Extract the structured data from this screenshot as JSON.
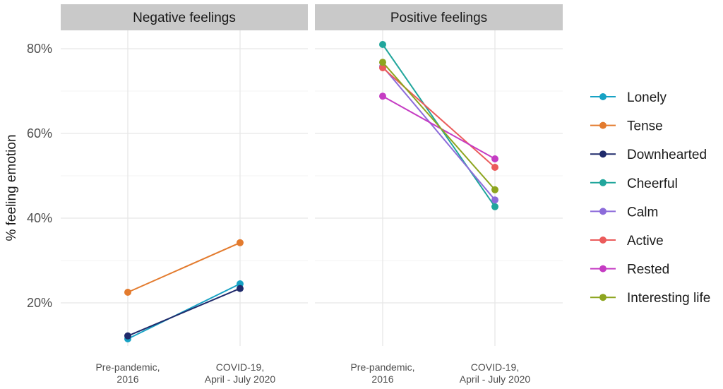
{
  "chart_data": {
    "type": "line",
    "ylabel": "% feeling emotion",
    "y_ticks": [
      "20%",
      "40%",
      "60%",
      "80%"
    ],
    "y_tick_values": [
      20,
      40,
      60,
      80
    ],
    "ylim": [
      10,
      83
    ],
    "grid": true,
    "legend_position": "right",
    "categories": [
      "Pre-pandemic,\n2016",
      "COVID-19,\nApril - July 2020"
    ],
    "panels": [
      {
        "title": "Negative feelings",
        "series": [
          {
            "name": "Lonely",
            "color": "#17A2C4",
            "values": [
              11.5,
              24.5
            ]
          },
          {
            "name": "Tense",
            "color": "#E37B2E",
            "values": [
              22.5,
              34.2
            ]
          },
          {
            "name": "Downhearted",
            "color": "#1F2A6B",
            "values": [
              12.2,
              23.4
            ]
          }
        ]
      },
      {
        "title": "Positive feelings",
        "series": [
          {
            "name": "Cheerful",
            "color": "#21A69C",
            "values": [
              81.0,
              42.7
            ]
          },
          {
            "name": "Calm",
            "color": "#8C6BDA",
            "values": [
              75.8,
              44.3
            ]
          },
          {
            "name": "Active",
            "color": "#EB5B5B",
            "values": [
              75.5,
              52.0
            ]
          },
          {
            "name": "Rested",
            "color": "#C53CC3",
            "values": [
              68.8,
              54.0
            ]
          },
          {
            "name": "Interesting life",
            "color": "#8DA51F",
            "values": [
              76.8,
              46.7
            ]
          }
        ]
      }
    ],
    "legend": [
      {
        "name": "Lonely",
        "color": "#17A2C4"
      },
      {
        "name": "Tense",
        "color": "#E37B2E"
      },
      {
        "name": "Downhearted",
        "color": "#1F2A6B"
      },
      {
        "name": "Cheerful",
        "color": "#21A69C"
      },
      {
        "name": "Calm",
        "color": "#8C6BDA"
      },
      {
        "name": "Active",
        "color": "#EB5B5B"
      },
      {
        "name": "Rested",
        "color": "#C53CC3"
      },
      {
        "name": "Interesting life",
        "color": "#8DA51F"
      }
    ]
  }
}
